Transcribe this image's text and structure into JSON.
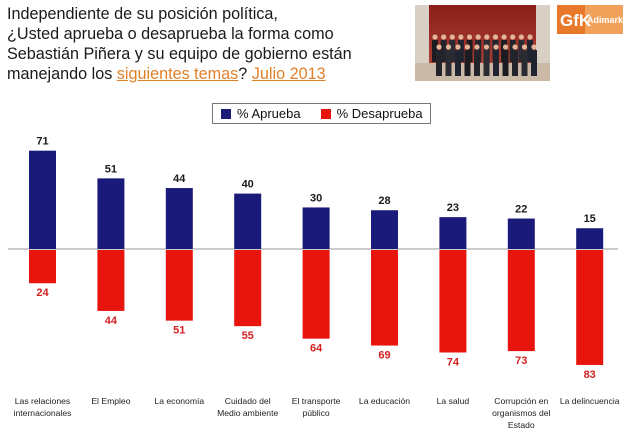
{
  "title": {
    "line1": "Independiente de su posición política,",
    "line2": "¿Usted aprueba o desaprueba la forma como",
    "line3": "Sebastián Piñera y su equipo de gobierno están",
    "line4_prefix": "manejando los ",
    "line4_highlight1": "siguientes temas",
    "line4_mid": "? ",
    "line4_highlight2": "Julio 2013"
  },
  "logo": {
    "brand": "GfK",
    "sub": "Adimark"
  },
  "colors": {
    "approve": "#1a1a7a",
    "disapprove": "#e8150f",
    "approve_label": "#1a1a1a",
    "disapprove_label": "#d42020",
    "highlight": "#e0802a"
  },
  "chart_data": {
    "type": "bar",
    "title": "¿Usted aprueba o desaprueba la forma como Sebastián Piñera y su equipo de gobierno están manejando los siguientes temas? Julio 2013",
    "categories": [
      [
        "Las relaciones",
        "internacionales"
      ],
      [
        "El Empleo"
      ],
      [
        "La economía"
      ],
      [
        "Cuidado del",
        "Medio ambiente"
      ],
      [
        "El transporte",
        "público"
      ],
      [
        "La educación"
      ],
      [
        "La salud"
      ],
      [
        "Corrupción en",
        "organismos del",
        "Estado"
      ],
      [
        "La delincuencia"
      ]
    ],
    "series": [
      {
        "name": "% Aprueba",
        "values": [
          71,
          51,
          44,
          40,
          30,
          28,
          23,
          22,
          15
        ]
      },
      {
        "name": "% Desaprueba",
        "values": [
          24,
          44,
          51,
          55,
          64,
          69,
          74,
          73,
          83
        ]
      }
    ],
    "legend_position": "top-center",
    "xlabel": "",
    "ylabel": "",
    "grid": false
  }
}
